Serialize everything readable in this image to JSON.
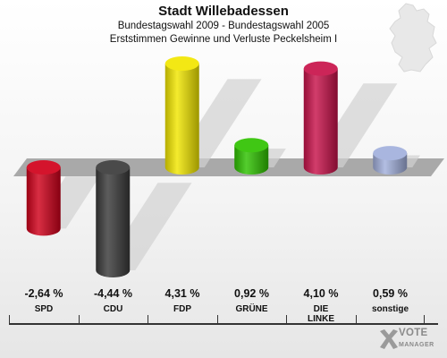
{
  "header": {
    "title": "Stadt Willebadessen",
    "subtitle1": "Bundestagswahl 2009 - Bundestagswahl 2005",
    "subtitle2": "Erststimmen Gewinne und Verluste Peckelsheim I"
  },
  "chart_data": {
    "type": "bar",
    "title": "Stadt Willebadessen",
    "subtitle": "Bundestagswahl 2009 - Bundestagswahl 2005 / Erststimmen Gewinne und Verluste Peckelsheim I",
    "categories": [
      "SPD",
      "CDU",
      "FDP",
      "GRÜNE",
      "DIE LINKE",
      "sonstige"
    ],
    "values": [
      -2.64,
      -4.44,
      4.31,
      0.92,
      4.1,
      0.59
    ],
    "value_labels": [
      "-2,64 %",
      "-4,44 %",
      "4,31 %",
      "0,92 %",
      "4,10 %",
      "0,59 %"
    ],
    "colors": [
      "#d0001a",
      "#3a3a3a",
      "#f2e600",
      "#2fc200",
      "#c8124a",
      "#a2b0dc"
    ],
    "ylim": [
      -4.44,
      4.31
    ],
    "grid": false,
    "legend": "none"
  },
  "category_lines": [
    [
      "SPD"
    ],
    [
      "CDU"
    ],
    [
      "FDP"
    ],
    [
      "GRÜNE"
    ],
    [
      "DIE",
      "LINKE"
    ],
    [
      "sonstige"
    ]
  ],
  "logo": {
    "line1": "VOTE",
    "line2": "MANAGER",
    "icon": "ballot-cross-icon"
  },
  "map_icon": "germany-map-icon"
}
